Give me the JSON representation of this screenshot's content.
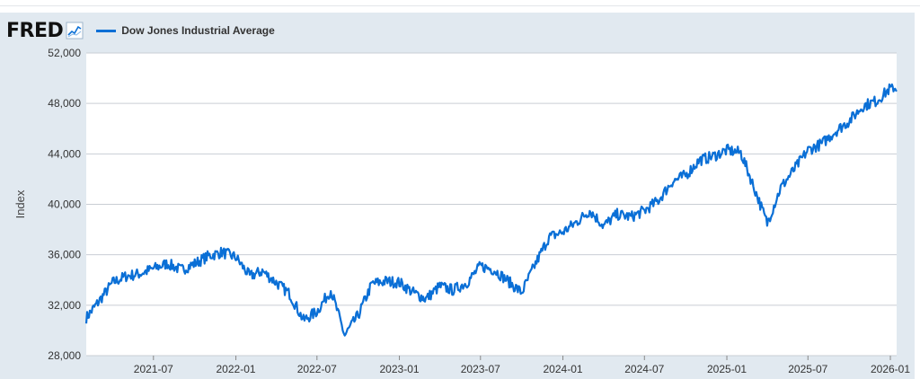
{
  "header": {
    "logo_text": "FRED"
  },
  "colors": {
    "series": "#0a6fd6",
    "panel": "#e1e9f0",
    "plot_bg": "#ffffff",
    "grid": "#c9ced4"
  },
  "chart_data": {
    "type": "line",
    "title": "",
    "xlabel": "",
    "ylabel": "Index",
    "ylim": [
      28000,
      52000
    ],
    "xlim": [
      "2021-02-01",
      "2026-01-15"
    ],
    "y_ticks": [
      "28,000",
      "32,000",
      "36,000",
      "40,000",
      "44,000",
      "48,000",
      "52,000"
    ],
    "x_ticks": [
      "2021-07",
      "2022-01",
      "2022-07",
      "2023-01",
      "2023-07",
      "2024-01",
      "2024-07",
      "2025-01",
      "2025-07",
      "2026-01"
    ],
    "grid": "horizontal",
    "legend_position": "top-left",
    "series": [
      {
        "name": "Dow Jones Industrial Average",
        "x": [
          "2021-02-01",
          "2021-03-01",
          "2021-04-01",
          "2021-05-01",
          "2021-06-01",
          "2021-07-01",
          "2021-08-01",
          "2021-09-01",
          "2021-10-01",
          "2021-11-01",
          "2021-12-01",
          "2022-01-01",
          "2022-02-01",
          "2022-03-01",
          "2022-04-01",
          "2022-05-01",
          "2022-06-01",
          "2022-07-01",
          "2022-08-01",
          "2022-09-01",
          "2022-10-01",
          "2022-11-01",
          "2022-12-01",
          "2023-01-01",
          "2023-02-01",
          "2023-03-01",
          "2023-04-01",
          "2023-05-01",
          "2023-06-01",
          "2023-07-01",
          "2023-08-01",
          "2023-09-01",
          "2023-10-01",
          "2023-11-01",
          "2023-12-01",
          "2024-01-01",
          "2024-02-01",
          "2024-03-01",
          "2024-04-01",
          "2024-05-01",
          "2024-06-01",
          "2024-07-01",
          "2024-08-01",
          "2024-09-01",
          "2024-10-01",
          "2024-11-01",
          "2024-12-01",
          "2025-01-01",
          "2025-02-01",
          "2025-03-01",
          "2025-04-01",
          "2025-05-01",
          "2025-06-01",
          "2025-07-01",
          "2025-08-01",
          "2025-09-01",
          "2025-10-01",
          "2025-11-01",
          "2025-12-01",
          "2026-01-01"
        ],
        "values": [
          31000,
          32300,
          33800,
          34300,
          34500,
          34900,
          35300,
          34800,
          35300,
          35900,
          36200,
          35800,
          34300,
          34700,
          33800,
          32900,
          30800,
          31500,
          33200,
          29600,
          31200,
          33700,
          33900,
          33800,
          33000,
          32500,
          33500,
          33200,
          33800,
          35100,
          34800,
          33900,
          33000,
          35300,
          37400,
          37800,
          38600,
          39500,
          38300,
          39200,
          39000,
          39500,
          40300,
          41800,
          42300,
          43500,
          43800,
          44300,
          44100,
          41500,
          38500,
          41300,
          42800,
          44300,
          44800,
          45800,
          46600,
          47800,
          48200,
          49200
        ]
      }
    ]
  }
}
